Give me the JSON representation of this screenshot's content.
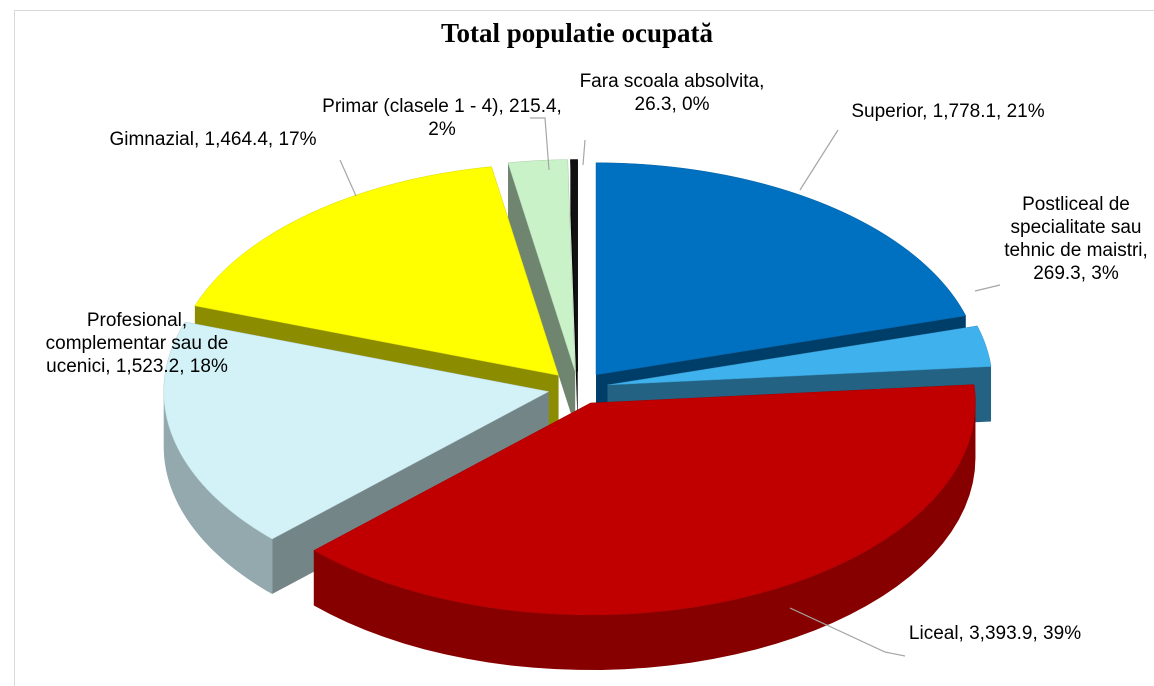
{
  "chart_data": {
    "type": "pie3d",
    "title": "Total populatie ocupată",
    "values": [
      1778.1,
      269.3,
      3393.9,
      1523.2,
      1464.4,
      215.4,
      26.3
    ],
    "value_labels": [
      "Superior, 1,778.1, 21%",
      "Postliceal de specialitate sau tehnic de maistri, 269.3, 3%",
      "Liceal, 3,393.9, 39%",
      "Profesional, complementar sau de ucenici, 1,523.2, 18%",
      "Gimnazial, 1,464.4, 17%",
      "Primar (clasele 1 - 4), 215.4, 2%",
      "Fara scoala absolvita, 26.3, 0%"
    ],
    "colors": [
      "#0070c0",
      "#3fb2ee",
      "#c00000",
      "#d2f2f8",
      "#ffff00",
      "#c9f2c9",
      "#111111"
    ]
  }
}
